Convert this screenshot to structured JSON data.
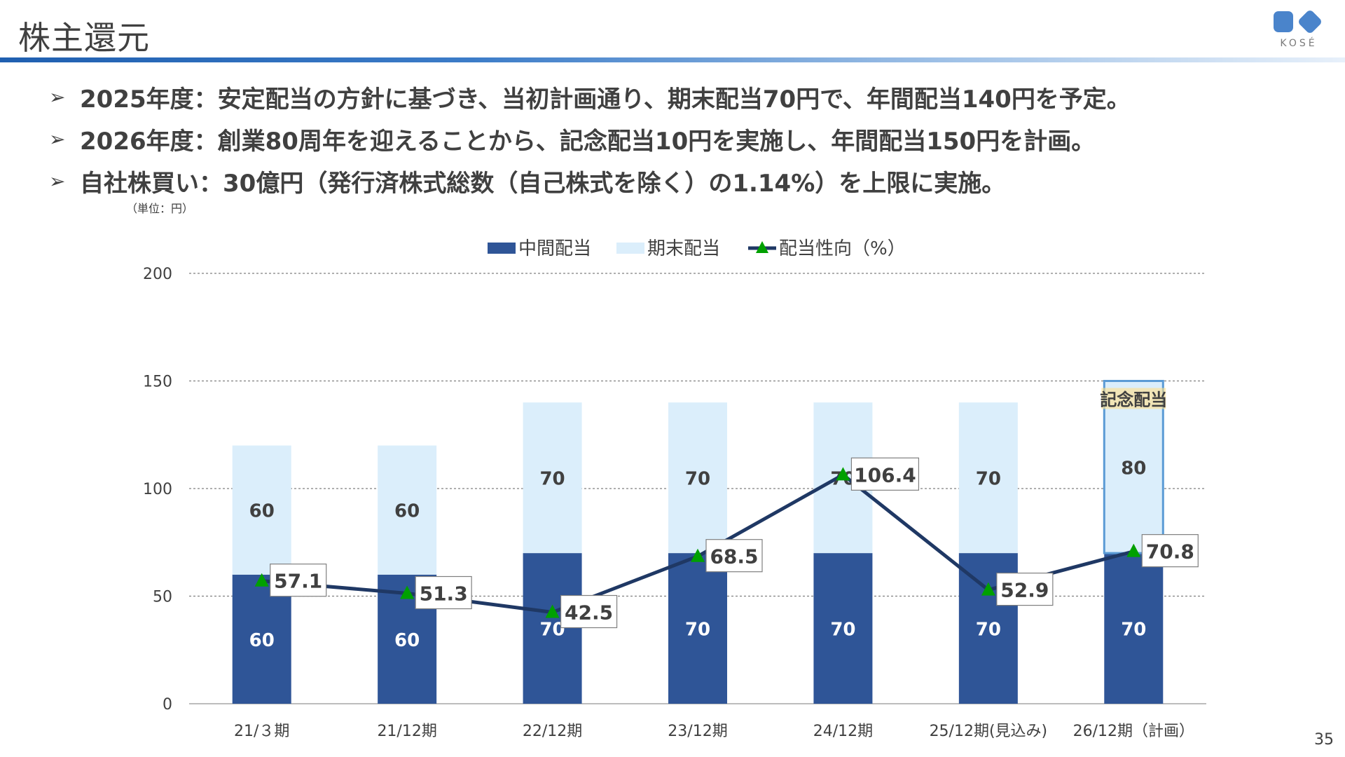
{
  "header": {
    "title": "株主還元",
    "logo_text": "KOSÉ"
  },
  "bullets": [
    "2025年度：安定配当の方針に基づき、当初計画通り、期末配当70円で、年間配当140円を予定。",
    "2026年度：創業80周年を迎えることから、記念配当10円を実施し、年間配当150円を計画。",
    "自社株買い：30億円（発行済株式総数（自己株式を除く）の1.14%）を上限に実施。"
  ],
  "unit_label": "（単位：円）",
  "page_number": "35",
  "chart_data": {
    "type": "bar",
    "stacked": true,
    "categories": [
      "21/３期",
      "21/12期",
      "22/12期",
      "23/12期",
      "24/12期",
      "25/12期(見込み)",
      "26/12期（計画）"
    ],
    "series": [
      {
        "name": "中間配当",
        "type": "bar",
        "values": [
          60,
          60,
          70,
          70,
          70,
          70,
          70
        ],
        "color": "#2f5597"
      },
      {
        "name": "期末配当",
        "type": "bar",
        "values": [
          60,
          60,
          70,
          70,
          70,
          70,
          80
        ],
        "color": "#dbeefb"
      },
      {
        "name": "配当性向（%）",
        "type": "line",
        "values": [
          57.1,
          51.3,
          42.5,
          68.5,
          106.4,
          52.9,
          70.8
        ],
        "color": "#1f3864",
        "marker_color": "#00a000"
      }
    ],
    "ylim": [
      0,
      200
    ],
    "yticks": [
      0,
      50,
      100,
      150,
      200
    ],
    "grid": true,
    "legend": "top-center",
    "annotations": [
      {
        "text": "記念配当",
        "category": "26/12期（計画）",
        "highlight_color": "#5b9bd5"
      }
    ]
  }
}
